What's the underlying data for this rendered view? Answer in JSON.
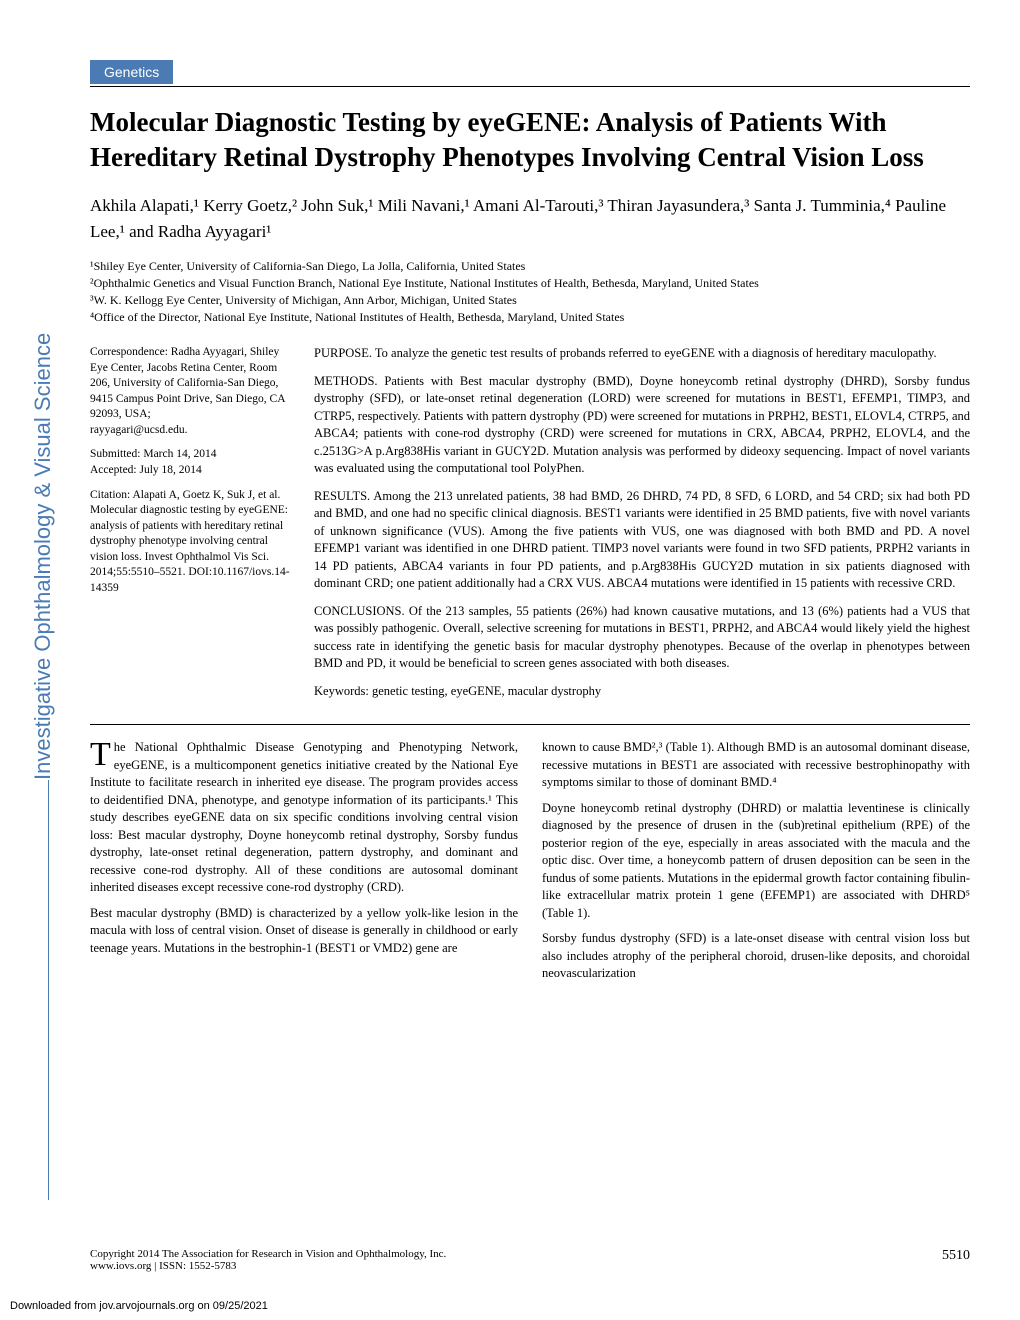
{
  "section_tag": "Genetics",
  "title": "Molecular Diagnostic Testing by eyeGENE: Analysis of Patients With Hereditary Retinal Dystrophy Phenotypes Involving Central Vision Loss",
  "authors": "Akhila Alapati,¹ Kerry Goetz,² John Suk,¹ Mili Navani,¹ Amani Al-Tarouti,³ Thiran Jayasundera,³ Santa J. Tumminia,⁴ Pauline Lee,¹ and Radha Ayyagari¹",
  "affiliations": {
    "a1": "¹Shiley Eye Center, University of California-San Diego, La Jolla, California, United States",
    "a2": "²Ophthalmic Genetics and Visual Function Branch, National Eye Institute, National Institutes of Health, Bethesda, Maryland, United States",
    "a3": "³W. K. Kellogg Eye Center, University of Michigan, Ann Arbor, Michigan, United States",
    "a4": "⁴Office of the Director, National Eye Institute, National Institutes of Health, Bethesda, Maryland, United States"
  },
  "correspondence": {
    "head": "Correspondence: Radha Ayyagari, Shiley Eye Center, Jacobs Retina Center, Room 206, University of California-San Diego, 9415 Campus Point Drive, San Diego, CA 92093, USA;",
    "email": "rayyagari@ucsd.edu."
  },
  "dates": {
    "submitted": "Submitted: March 14, 2014",
    "accepted": "Accepted: July 18, 2014"
  },
  "citation": "Citation: Alapati A, Goetz K, Suk J, et al. Molecular diagnostic testing by eyeGENE: analysis of patients with hereditary retinal dystrophy phenotype involving central vision loss. Invest Ophthalmol Vis Sci. 2014;55:5510–5521. DOI:10.1167/iovs.14-14359",
  "abstract": {
    "purpose": "PURPOSE. To analyze the genetic test results of probands referred to eyeGENE with a diagnosis of hereditary maculopathy.",
    "methods": "METHODS. Patients with Best macular dystrophy (BMD), Doyne honeycomb retinal dystrophy (DHRD), Sorsby fundus dystrophy (SFD), or late-onset retinal degeneration (LORD) were screened for mutations in BEST1, EFEMP1, TIMP3, and CTRP5, respectively. Patients with pattern dystrophy (PD) were screened for mutations in PRPH2, BEST1, ELOVL4, CTRP5, and ABCA4; patients with cone-rod dystrophy (CRD) were screened for mutations in CRX, ABCA4, PRPH2, ELOVL4, and the c.2513G>A p.Arg838His variant in GUCY2D. Mutation analysis was performed by dideoxy sequencing. Impact of novel variants was evaluated using the computational tool PolyPhen.",
    "results": "RESULTS. Among the 213 unrelated patients, 38 had BMD, 26 DHRD, 74 PD, 8 SFD, 6 LORD, and 54 CRD; six had both PD and BMD, and one had no specific clinical diagnosis. BEST1 variants were identified in 25 BMD patients, five with novel variants of unknown significance (VUS). Among the five patients with VUS, one was diagnosed with both BMD and PD. A novel EFEMP1 variant was identified in one DHRD patient. TIMP3 novel variants were found in two SFD patients, PRPH2 variants in 14 PD patients, ABCA4 variants in four PD patients, and p.Arg838His GUCY2D mutation in six patients diagnosed with dominant CRD; one patient additionally had a CRX VUS. ABCA4 mutations were identified in 15 patients with recessive CRD.",
    "conclusions": "CONCLUSIONS. Of the 213 samples, 55 patients (26%) had known causative mutations, and 13 (6%) patients had a VUS that was possibly pathogenic. Overall, selective screening for mutations in BEST1, PRPH2, and ABCA4 would likely yield the highest success rate in identifying the genetic basis for macular dystrophy phenotypes. Because of the overlap in phenotypes between BMD and PD, it would be beneficial to screen genes associated with both diseases.",
    "keywords": "Keywords: genetic testing, eyeGENE, macular dystrophy"
  },
  "body": {
    "p1": "he National Ophthalmic Disease Genotyping and Phenotyping Network, eyeGENE, is a multicomponent genetics initiative created by the National Eye Institute to facilitate research in inherited eye disease. The program provides access to deidentified DNA, phenotype, and genotype information of its participants.¹ This study describes eyeGENE data on six specific conditions involving central vision loss: Best macular dystrophy, Doyne honeycomb retinal dystrophy, Sorsby fundus dystrophy, late-onset retinal degeneration, pattern dystrophy, and dominant and recessive cone-rod dystrophy. All of these conditions are autosomal dominant inherited diseases except recessive cone-rod dystrophy (CRD).",
    "p2": "Best macular dystrophy (BMD) is characterized by a yellow yolk-like lesion in the macula with loss of central vision. Onset of disease is generally in childhood or early teenage years. Mutations in the bestrophin-1 (BEST1 or VMD2) gene are",
    "p3": "known to cause BMD²,³ (Table 1). Although BMD is an autosomal dominant disease, recessive mutations in BEST1 are associated with recessive bestrophinopathy with symptoms similar to those of dominant BMD.⁴",
    "p4": "Doyne honeycomb retinal dystrophy (DHRD) or malattia leventinese is clinically diagnosed by the presence of drusen in the (sub)retinal epithelium (RPE) of the posterior region of the eye, especially in areas associated with the macula and the optic disc. Over time, a honeycomb pattern of drusen deposition can be seen in the fundus of some patients. Mutations in the epidermal growth factor containing fibulin-like extracellular matrix protein 1 gene (EFEMP1) are associated with DHRD⁵ (Table 1).",
    "p5": "Sorsby fundus dystrophy (SFD) is a late-onset disease with central vision loss but also includes atrophy of the peripheral choroid, drusen-like deposits, and choroidal neovascularization"
  },
  "footer": {
    "copyright": "Copyright 2014 The Association for Research in Vision and Ophthalmology, Inc.",
    "issn": "www.iovs.org | ISSN: 1552-5783",
    "page": "5510"
  },
  "download": "Downloaded from jov.arvojournals.org on 09/25/2021",
  "sidebar": "Investigative Ophthalmology & Visual Science",
  "colors": {
    "brand": "#4a7bb5",
    "text": "#000000",
    "background": "#ffffff"
  }
}
